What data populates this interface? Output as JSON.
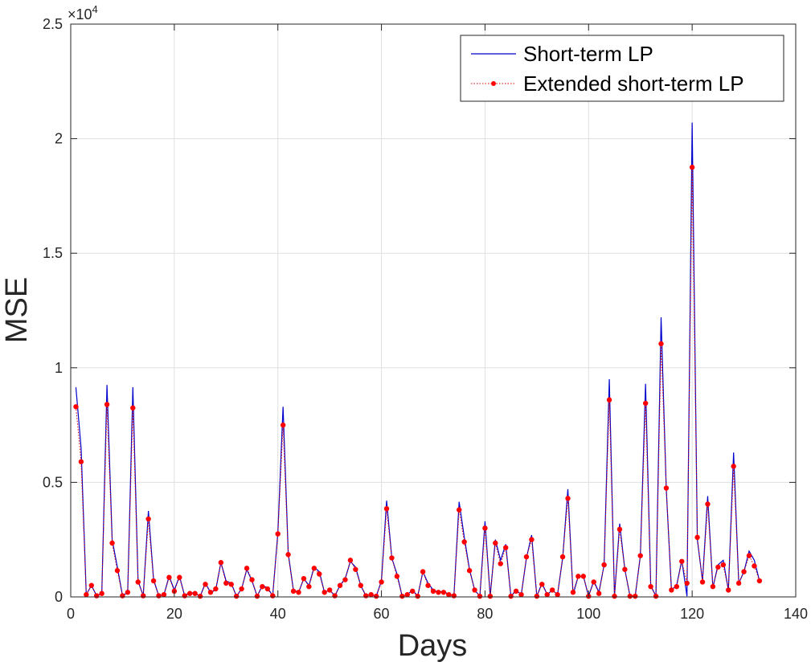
{
  "chart_data": {
    "type": "line",
    "xlabel": "Days",
    "ylabel": "MSE",
    "xlim": [
      0,
      140
    ],
    "ylim": [
      0,
      25000
    ],
    "x_ticks": [
      0,
      20,
      40,
      60,
      80,
      100,
      120,
      140
    ],
    "y_ticks": [
      0,
      5000,
      10000,
      15000,
      20000,
      25000
    ],
    "y_tick_labels": [
      "0",
      "0.5",
      "1",
      "1.5",
      "2",
      "2.5"
    ],
    "y_exponent_label": "×10",
    "y_exponent_power": "4",
    "grid": true,
    "legend_position": "top-right",
    "series": [
      {
        "name": "Short-term LP",
        "color": "#0000cc",
        "style": "solid",
        "x": [
          1,
          2,
          3,
          4,
          5,
          6,
          7,
          8,
          9,
          10,
          11,
          12,
          13,
          14,
          15,
          16,
          17,
          18,
          19,
          20,
          21,
          22,
          23,
          24,
          25,
          26,
          27,
          28,
          29,
          30,
          31,
          32,
          33,
          34,
          35,
          36,
          37,
          38,
          39,
          40,
          41,
          42,
          43,
          44,
          45,
          46,
          47,
          48,
          49,
          50,
          51,
          52,
          53,
          54,
          55,
          56,
          57,
          58,
          59,
          60,
          61,
          62,
          63,
          64,
          65,
          66,
          67,
          68,
          69,
          70,
          71,
          72,
          73,
          74,
          75,
          76,
          77,
          78,
          79,
          80,
          81,
          82,
          83,
          84,
          85,
          86,
          87,
          88,
          89,
          90,
          91,
          92,
          93,
          94,
          95,
          96,
          97,
          98,
          99,
          100,
          101,
          102,
          103,
          104,
          105,
          106,
          107,
          108,
          109,
          110,
          111,
          112,
          113,
          114,
          115,
          116,
          117,
          118,
          119,
          120,
          121,
          122,
          123,
          124,
          125,
          126,
          127,
          128,
          129,
          130,
          131,
          132,
          133
        ],
        "values": [
          9150,
          6500,
          100,
          500,
          50,
          150,
          9250,
          2500,
          1300,
          50,
          200,
          9150,
          700,
          50,
          3750,
          750,
          50,
          100,
          900,
          300,
          900,
          50,
          200,
          150,
          30,
          600,
          200,
          300,
          1500,
          700,
          600,
          30,
          350,
          1200,
          700,
          30,
          500,
          400,
          50,
          2800,
          8300,
          1900,
          300,
          200,
          800,
          500,
          1300,
          1100,
          200,
          300,
          50,
          500,
          800,
          1550,
          1300,
          500,
          50,
          100,
          30,
          700,
          4200,
          1700,
          1000,
          30,
          100,
          300,
          30,
          1100,
          600,
          300,
          200,
          250,
          100,
          50,
          4150,
          2600,
          1200,
          300,
          30,
          3300,
          30,
          2500,
          1600,
          2300,
          30,
          300,
          100,
          1700,
          2700,
          30,
          600,
          100,
          300,
          100,
          1700,
          4700,
          100,
          900,
          900,
          30,
          700,
          200,
          1400,
          9500,
          30,
          3200,
          1200,
          30,
          30,
          1800,
          9300,
          500,
          30,
          12200,
          4700,
          300,
          500,
          1600,
          30,
          20700,
          2500,
          700,
          4400,
          400,
          1400,
          1600,
          300,
          6300,
          600,
          1100,
          2000,
          1600,
          700
        ]
      },
      {
        "name": "Extended short-term LP",
        "color": "#dd0000",
        "style": "dotted",
        "x": [
          1,
          2,
          3,
          4,
          5,
          6,
          7,
          8,
          9,
          10,
          11,
          12,
          13,
          14,
          15,
          16,
          17,
          18,
          19,
          20,
          21,
          22,
          23,
          24,
          25,
          26,
          27,
          28,
          29,
          30,
          31,
          32,
          33,
          34,
          35,
          36,
          37,
          38,
          39,
          40,
          41,
          42,
          43,
          44,
          45,
          46,
          47,
          48,
          49,
          50,
          51,
          52,
          53,
          54,
          55,
          56,
          57,
          58,
          59,
          60,
          61,
          62,
          63,
          64,
          65,
          66,
          67,
          68,
          69,
          70,
          71,
          72,
          73,
          74,
          75,
          76,
          77,
          78,
          79,
          80,
          81,
          82,
          83,
          84,
          85,
          86,
          87,
          88,
          89,
          90,
          91,
          92,
          93,
          94,
          95,
          96,
          97,
          98,
          99,
          100,
          101,
          102,
          103,
          104,
          105,
          106,
          107,
          108,
          109,
          110,
          111,
          112,
          113,
          114,
          115,
          116,
          117,
          118,
          119,
          120,
          121,
          122,
          123,
          124,
          125,
          126,
          127,
          128,
          129,
          130,
          131,
          132,
          133
        ],
        "values": [
          8300,
          5900,
          100,
          500,
          50,
          150,
          8400,
          2350,
          1150,
          50,
          200,
          8250,
          650,
          50,
          3400,
          700,
          50,
          100,
          850,
          250,
          850,
          50,
          150,
          150,
          30,
          550,
          200,
          350,
          1500,
          600,
          550,
          30,
          350,
          1250,
          750,
          30,
          450,
          350,
          50,
          2750,
          7500,
          1850,
          250,
          200,
          800,
          450,
          1250,
          1000,
          200,
          300,
          50,
          500,
          750,
          1600,
          1200,
          500,
          50,
          100,
          30,
          650,
          3850,
          1700,
          900,
          30,
          100,
          250,
          30,
          1100,
          500,
          250,
          200,
          200,
          100,
          50,
          3800,
          2400,
          1150,
          300,
          30,
          3000,
          30,
          2350,
          1450,
          2150,
          30,
          250,
          100,
          1750,
          2500,
          30,
          550,
          100,
          300,
          100,
          1750,
          4300,
          200,
          900,
          900,
          30,
          650,
          150,
          1400,
          8600,
          30,
          2950,
          1200,
          30,
          30,
          1800,
          8450,
          450,
          30,
          11050,
          4750,
          300,
          450,
          1550,
          600,
          18750,
          2600,
          650,
          4050,
          450,
          1300,
          1400,
          300,
          5700,
          600,
          1100,
          1800,
          1350,
          700
        ]
      }
    ]
  }
}
